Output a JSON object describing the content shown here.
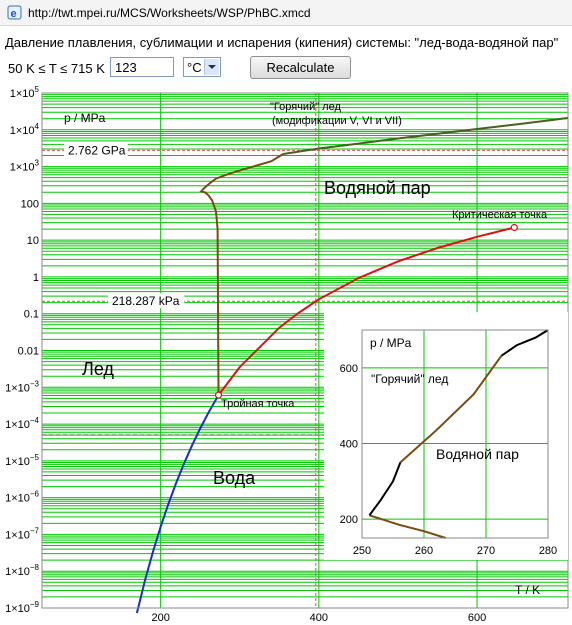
{
  "browser": {
    "url": "http://twt.mpei.ru/MCS/Worksheets/WSP/PhBC.xmcd"
  },
  "worksheet": {
    "title": "Давление плавления, сублимации и испарения (кипения) системы: \"лед-вода-водяной пар\"",
    "range_label": "50 K ≤ T ≤ 715 K",
    "t_value": "123",
    "t_unit": "°C",
    "recalc_label": "Recalculate"
  },
  "colors": {
    "grid": "#00c800",
    "frame": "#888888",
    "bg": "#ffffff",
    "ice_melting": "#7a4a10",
    "hot_ice": "#4a6020",
    "liquid_vapor": "#e01010",
    "sublimation": "#1030d0",
    "marker_line": "#e05050",
    "crosshair": "#a0a0a0"
  },
  "chart_data": [
    {
      "type": "line",
      "ylabel": "p / MPa",
      "xlabel": "T / K",
      "xlim": [
        50,
        715
      ],
      "ylim": [
        1e-09,
        100000.0
      ],
      "yscale": "log",
      "grid": true,
      "xticks": [
        200,
        400,
        600
      ],
      "yticks": [
        {
          "value": 100000.0,
          "base": "1×10",
          "exp": "5"
        },
        {
          "value": 10000.0,
          "base": "1×10",
          "exp": "4"
        },
        {
          "value": 1000.0,
          "base": "1×10",
          "exp": "3"
        },
        {
          "value": 100,
          "label": "100"
        },
        {
          "value": 10,
          "label": "10"
        },
        {
          "value": 1,
          "label": "1"
        },
        {
          "value": 0.1,
          "label": "0.1"
        },
        {
          "value": 0.01,
          "label": "0.01"
        },
        {
          "value": 0.001,
          "base": "1×10",
          "exp": "−3"
        },
        {
          "value": 0.0001,
          "base": "1×10",
          "exp": "−4"
        },
        {
          "value": 1e-05,
          "base": "1×10",
          "exp": "−5"
        },
        {
          "value": 1e-06,
          "base": "1×10",
          "exp": "−6"
        },
        {
          "value": 1e-07,
          "base": "1×10",
          "exp": "−7"
        },
        {
          "value": 1e-08,
          "base": "1×10",
          "exp": "−8"
        },
        {
          "value": 1e-09,
          "base": "1×10",
          "exp": "−9"
        }
      ],
      "series": [
        {
          "key": "ice_melting",
          "x": [
            273.16,
            272,
            270,
            265,
            260,
            256,
            251.2,
            255,
            262,
            270,
            285,
            300,
            340,
            355
          ],
          "y": [
            0.000612,
            20,
            60,
            120,
            170,
            200,
            209.9,
            260,
            350,
            470,
            620,
            780,
            1400,
            2200
          ]
        },
        {
          "key": "hot_ice",
          "x": [
            355,
            400,
            450,
            500,
            550,
            600,
            650,
            700,
            715
          ],
          "y": [
            2200,
            3100,
            4200,
            5800,
            7800,
            10500,
            14000,
            19000,
            21000
          ]
        },
        {
          "key": "liquid_vapor",
          "x": [
            273.16,
            300,
            350,
            373.15,
            400,
            450,
            500,
            550,
            600,
            647.1
          ],
          "y": [
            0.000612,
            0.00354,
            0.0417,
            0.1013,
            0.2458,
            0.9321,
            2.639,
            6.117,
            12.34,
            22.064
          ]
        },
        {
          "key": "sublimation",
          "x": [
            273.16,
            260,
            250,
            240,
            230,
            220,
            210,
            200,
            190,
            180,
            170
          ],
          "y": [
            0.000612,
            0.000196,
            7.6e-05,
            2.73e-05,
            8.9e-06,
            2.66e-06,
            7e-07,
            1.6e-07,
            3.2e-08,
            5.4e-09,
            7.3e-10
          ]
        }
      ],
      "markers": [
        {
          "key": "critical_point",
          "x": 647.1,
          "y": 22.064
        },
        {
          "key": "triple_point",
          "x": 273.16,
          "y": 0.000612
        }
      ],
      "hlines": [
        {
          "value": 2762,
          "label": "2.762 GPa"
        },
        {
          "value": 0.218287,
          "label": "218.287 kPa"
        }
      ],
      "vlines": [
        {
          "value": 396.15
        }
      ],
      "annotations": {
        "hot_ice_1": "\"Горячий\" лед",
        "hot_ice_2": "(модификации V, VI и VII)",
        "vapor": "Водяной пар",
        "critical": "Критическая точка",
        "ice": "Лед",
        "water": "Вода",
        "triple": "Тройная точка"
      }
    },
    {
      "type": "line",
      "ylabel": "p / MPa",
      "xlim": [
        250,
        280
      ],
      "ylim": [
        150,
        700
      ],
      "yscale": "linear",
      "grid": true,
      "xticks": [
        250,
        260,
        270,
        280
      ],
      "yticks": [
        200,
        400,
        600
      ],
      "series": [
        {
          "key": "ice_lower",
          "x": [
            251.2,
            256,
            260,
            263.5
          ],
          "y": [
            209.9,
            185,
            168,
            150
          ]
        },
        {
          "key": "ice_V",
          "x": [
            251.2,
            253,
            255,
            256.2
          ],
          "y": [
            209.9,
            250,
            300,
            350
          ]
        },
        {
          "key": "ice_V_VI",
          "x": [
            256.2,
            262,
            268,
            272.5
          ],
          "y": [
            350,
            435,
            530,
            632
          ]
        },
        {
          "key": "ice_VI",
          "x": [
            272.5,
            275,
            278,
            280
          ],
          "y": [
            632,
            660,
            680,
            700
          ]
        }
      ],
      "annotations": {
        "hot_ice": "\"Горячий\" лед",
        "vapor": "Водяной пар"
      }
    }
  ]
}
